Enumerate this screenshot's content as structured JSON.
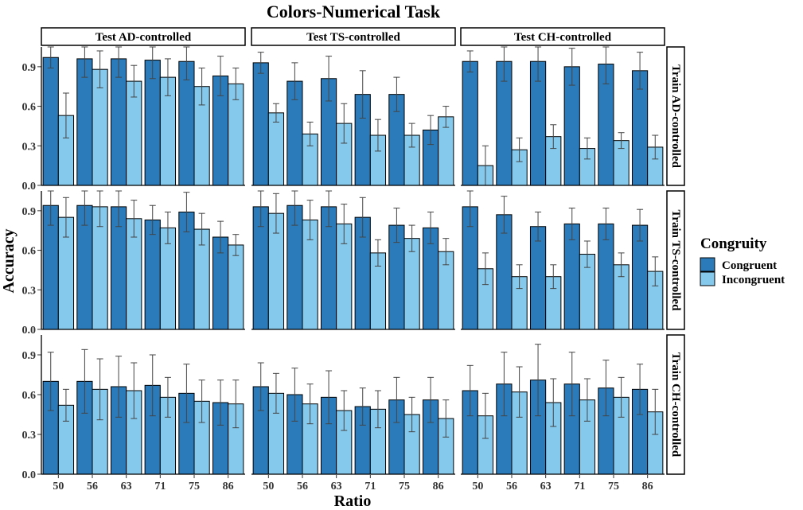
{
  "chart_data": {
    "type": "bar",
    "title": "Colors-Numerical Task",
    "xlabel": "Ratio",
    "ylabel": "Accuracy",
    "ylim": [
      0,
      1.05
    ],
    "yticks": [
      "0.0",
      "0.3",
      "0.6",
      "0.9"
    ],
    "categories": [
      "50",
      "56",
      "63",
      "71",
      "75",
      "86"
    ],
    "column_facets": [
      "Test AD-controlled",
      "Test TS-controlled",
      "Test CH-controlled"
    ],
    "row_facets": [
      "Train AD-controlled",
      "Train TS-controlled",
      "Train CH-controlled"
    ],
    "legend": {
      "title": "Congruity",
      "position": "right",
      "entries": [
        {
          "name": "Congruent",
          "color": "#2b7bba"
        },
        {
          "name": "Incongruent",
          "color": "#85c9ed"
        }
      ]
    },
    "grid": false,
    "panels": [
      {
        "row": "Train AD-controlled",
        "col": "Test AD-controlled",
        "series": [
          {
            "name": "Congruent",
            "values": [
              0.97,
              0.96,
              0.96,
              0.95,
              0.94,
              0.83
            ],
            "errors": [
              0.08,
              0.14,
              0.14,
              0.14,
              0.14,
              0.15
            ]
          },
          {
            "name": "Incongruent",
            "values": [
              0.53,
              0.88,
              0.79,
              0.82,
              0.75,
              0.77
            ],
            "errors": [
              0.17,
              0.14,
              0.12,
              0.14,
              0.14,
              0.12
            ]
          }
        ]
      },
      {
        "row": "Train AD-controlled",
        "col": "Test TS-controlled",
        "series": [
          {
            "name": "Congruent",
            "values": [
              0.93,
              0.79,
              0.81,
              0.69,
              0.69,
              0.42
            ],
            "errors": [
              0.08,
              0.14,
              0.17,
              0.18,
              0.13,
              0.11
            ]
          },
          {
            "name": "Incongruent",
            "values": [
              0.55,
              0.39,
              0.47,
              0.38,
              0.38,
              0.52
            ],
            "errors": [
              0.07,
              0.09,
              0.15,
              0.12,
              0.09,
              0.08
            ]
          }
        ]
      },
      {
        "row": "Train AD-controlled",
        "col": "Test CH-controlled",
        "series": [
          {
            "name": "Congruent",
            "values": [
              0.94,
              0.94,
              0.94,
              0.9,
              0.92,
              0.87
            ],
            "errors": [
              0.08,
              0.15,
              0.15,
              0.14,
              0.15,
              0.14
            ]
          },
          {
            "name": "Incongruent",
            "values": [
              0.15,
              0.27,
              0.37,
              0.28,
              0.34,
              0.29
            ],
            "errors": [
              0.15,
              0.09,
              0.09,
              0.08,
              0.06,
              0.09
            ]
          }
        ]
      },
      {
        "row": "Train TS-controlled",
        "col": "Test AD-controlled",
        "series": [
          {
            "name": "Congruent",
            "values": [
              0.94,
              0.94,
              0.93,
              0.83,
              0.89,
              0.7
            ],
            "errors": [
              0.15,
              0.15,
              0.15,
              0.11,
              0.15,
              0.12
            ]
          },
          {
            "name": "Incongruent",
            "values": [
              0.85,
              0.93,
              0.84,
              0.77,
              0.76,
              0.64
            ],
            "errors": [
              0.15,
              0.15,
              0.14,
              0.12,
              0.12,
              0.08
            ]
          }
        ]
      },
      {
        "row": "Train TS-controlled",
        "col": "Test TS-controlled",
        "series": [
          {
            "name": "Congruent",
            "values": [
              0.93,
              0.94,
              0.93,
              0.85,
              0.79,
              0.77
            ],
            "errors": [
              0.15,
              0.15,
              0.15,
              0.15,
              0.13,
              0.12
            ]
          },
          {
            "name": "Incongruent",
            "values": [
              0.88,
              0.83,
              0.8,
              0.58,
              0.69,
              0.59
            ],
            "errors": [
              0.15,
              0.15,
              0.15,
              0.1,
              0.1,
              0.1
            ]
          }
        ]
      },
      {
        "row": "Train TS-controlled",
        "col": "Test CH-controlled",
        "series": [
          {
            "name": "Congruent",
            "values": [
              0.93,
              0.87,
              0.78,
              0.8,
              0.8,
              0.79
            ],
            "errors": [
              0.15,
              0.14,
              0.11,
              0.12,
              0.12,
              0.12
            ]
          },
          {
            "name": "Incongruent",
            "values": [
              0.46,
              0.4,
              0.4,
              0.57,
              0.49,
              0.44
            ],
            "errors": [
              0.12,
              0.09,
              0.09,
              0.1,
              0.09,
              0.11
            ]
          }
        ]
      },
      {
        "row": "Train CH-controlled",
        "col": "Test AD-controlled",
        "series": [
          {
            "name": "Congruent",
            "values": [
              0.7,
              0.7,
              0.66,
              0.67,
              0.61,
              0.54
            ],
            "errors": [
              0.22,
              0.24,
              0.23,
              0.23,
              0.22,
              0.17
            ]
          },
          {
            "name": "Incongruent",
            "values": [
              0.52,
              0.64,
              0.63,
              0.58,
              0.55,
              0.53
            ],
            "errors": [
              0.12,
              0.23,
              0.21,
              0.15,
              0.16,
              0.18
            ]
          }
        ]
      },
      {
        "row": "Train CH-controlled",
        "col": "Test TS-controlled",
        "series": [
          {
            "name": "Congruent",
            "values": [
              0.66,
              0.6,
              0.58,
              0.51,
              0.56,
              0.56
            ],
            "errors": [
              0.18,
              0.2,
              0.2,
              0.14,
              0.17,
              0.17
            ]
          },
          {
            "name": "Incongruent",
            "values": [
              0.61,
              0.53,
              0.48,
              0.49,
              0.45,
              0.42
            ],
            "errors": [
              0.15,
              0.15,
              0.15,
              0.14,
              0.13,
              0.14
            ]
          }
        ]
      },
      {
        "row": "Train CH-controlled",
        "col": "Test CH-controlled",
        "series": [
          {
            "name": "Congruent",
            "values": [
              0.63,
              0.68,
              0.71,
              0.68,
              0.65,
              0.64
            ],
            "errors": [
              0.19,
              0.24,
              0.27,
              0.24,
              0.21,
              0.19
            ]
          },
          {
            "name": "Incongruent",
            "values": [
              0.44,
              0.62,
              0.54,
              0.56,
              0.58,
              0.47
            ],
            "errors": [
              0.17,
              0.19,
              0.18,
              0.16,
              0.15,
              0.17
            ]
          }
        ]
      }
    ]
  }
}
